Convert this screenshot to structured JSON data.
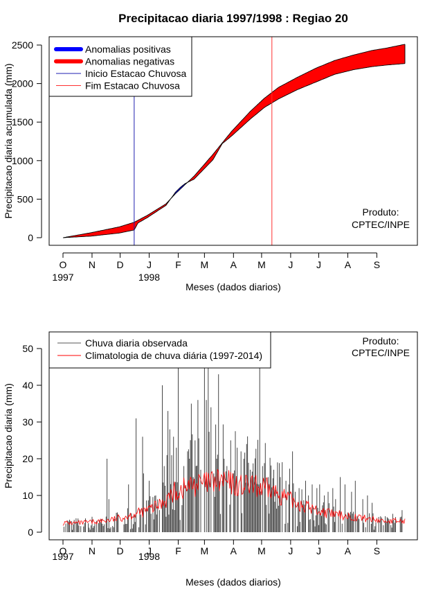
{
  "figure_title": "Precipitacao diaria 1997/1998 : Regiao 20",
  "chart_data": [
    {
      "type": "area",
      "id": "cumulative",
      "title": "Precipitacao diaria 1997/1998 : Regiao 20",
      "xlabel": "Meses (dados diarios)",
      "ylabel": "Precipitacao diaria acumulada (mm)",
      "x_unit": "days since 1997-10-01",
      "xlim": [
        0,
        365
      ],
      "ylim": [
        -80,
        2600
      ],
      "yticks": [
        0,
        500,
        1000,
        1500,
        2000,
        2500
      ],
      "month_ticks": [
        {
          "day": 0,
          "label": "O"
        },
        {
          "day": 31,
          "label": "N"
        },
        {
          "day": 61,
          "label": "D"
        },
        {
          "day": 92,
          "label": "J"
        },
        {
          "day": 123,
          "label": "F"
        },
        {
          "day": 151,
          "label": "M"
        },
        {
          "day": 182,
          "label": "A"
        },
        {
          "day": 212,
          "label": "M"
        },
        {
          "day": 243,
          "label": "J"
        },
        {
          "day": 273,
          "label": "J"
        },
        {
          "day": 304,
          "label": "A"
        },
        {
          "day": 335,
          "label": "S"
        }
      ],
      "year_labels": [
        {
          "day": 0,
          "label": "1997"
        },
        {
          "day": 92,
          "label": "1998"
        }
      ],
      "climatology_cumulative": {
        "x": [
          0,
          30,
          60,
          76,
          90,
          110,
          120,
          140,
          160,
          170,
          180,
          200,
          215,
          230,
          250,
          270,
          290,
          310,
          330,
          345,
          365
        ],
        "y": [
          0,
          65,
          140,
          200,
          290,
          440,
          570,
          800,
          1080,
          1230,
          1380,
          1640,
          1810,
          1950,
          2080,
          2200,
          2300,
          2370,
          2430,
          2460,
          2510
        ]
      },
      "observed_cumulative": {
        "x": [
          0,
          30,
          60,
          76,
          80,
          90,
          110,
          120,
          125,
          130,
          140,
          160,
          170,
          180,
          200,
          215,
          230,
          250,
          270,
          290,
          310,
          330,
          345,
          365
        ],
        "y": [
          0,
          20,
          60,
          100,
          190,
          260,
          420,
          590,
          650,
          700,
          760,
          1010,
          1220,
          1320,
          1540,
          1690,
          1800,
          1920,
          2020,
          2120,
          2180,
          2220,
          2240,
          2260
        ]
      },
      "vlines": [
        {
          "day": 76,
          "label": "Inicio Estacao Chuvosa",
          "color": "#1f1fb0"
        },
        {
          "day": 223,
          "label": "Fim Estacao Chuvosa",
          "color": "#ff3030"
        }
      ],
      "legend": [
        {
          "label": "Anomalias positivas",
          "color": "#0000ff",
          "kind": "thick"
        },
        {
          "label": "Anomalias negativas",
          "color": "#ff0000",
          "kind": "thick"
        },
        {
          "label": "Inicio Estacao Chuvosa",
          "color": "#1f1fb0",
          "kind": "thin"
        },
        {
          "label": "Fim Estacao Chuvosa",
          "color": "#ff3030",
          "kind": "thin"
        }
      ],
      "legend_position": "top-left",
      "product_note": [
        "Produto:",
        "CPTEC/INPE"
      ]
    },
    {
      "type": "bar",
      "id": "daily",
      "xlabel": "Meses (dados diarios)",
      "ylabel": "Precipitacao diaria (mm)",
      "x_unit": "days since 1997-10-01",
      "xlim": [
        0,
        365
      ],
      "ylim": [
        -2,
        53
      ],
      "yticks": [
        0,
        10,
        20,
        30,
        40,
        50
      ],
      "month_ticks": [
        {
          "day": 0,
          "label": "O"
        },
        {
          "day": 31,
          "label": "N"
        },
        {
          "day": 61,
          "label": "D"
        },
        {
          "day": 92,
          "label": "J"
        },
        {
          "day": 123,
          "label": "F"
        },
        {
          "day": 151,
          "label": "M"
        },
        {
          "day": 182,
          "label": "A"
        },
        {
          "day": 212,
          "label": "M"
        },
        {
          "day": 243,
          "label": "J"
        },
        {
          "day": 273,
          "label": "J"
        },
        {
          "day": 304,
          "label": "A"
        },
        {
          "day": 335,
          "label": "S"
        }
      ],
      "year_labels": [
        {
          "day": 0,
          "label": "1997"
        },
        {
          "day": 92,
          "label": "1998"
        }
      ],
      "observed_daily_peaks": {
        "day": [
          47,
          49,
          70,
          78,
          85,
          86,
          92,
          99,
          106,
          108,
          111,
          112,
          114,
          118,
          121,
          123,
          129,
          133,
          135,
          137,
          139,
          141,
          142,
          144,
          147,
          151,
          153,
          155,
          158,
          161,
          164,
          166,
          170,
          172,
          175,
          179,
          182,
          186,
          190,
          193,
          196,
          200,
          204,
          209,
          210,
          213,
          219,
          225,
          229,
          232,
          238,
          241,
          245,
          248,
          252,
          259,
          262,
          266,
          271,
          274,
          279,
          283,
          288,
          291,
          296,
          301,
          308,
          312,
          320,
          325,
          330,
          340,
          352,
          362
        ],
        "value": [
          20,
          9,
          13,
          31,
          26,
          16,
          14,
          10,
          40,
          18,
          21,
          33,
          28,
          26,
          23,
          45,
          18,
          22,
          20,
          35,
          15,
          25,
          18,
          36,
          17,
          45,
          36,
          45,
          34,
          16,
          20,
          43,
          14,
          20,
          18,
          25,
          16,
          23,
          22,
          20,
          24,
          17,
          15,
          13,
          45,
          18,
          15,
          17,
          19,
          15,
          14,
          13,
          22,
          11,
          12,
          14,
          10,
          13,
          12,
          13,
          10,
          11,
          12,
          9,
          15,
          13,
          11,
          14,
          9,
          10,
          8,
          4,
          5,
          6
        ]
      },
      "climatology_daily": {
        "x": [
          0,
          20,
          40,
          55,
          70,
          85,
          100,
          110,
          120,
          130,
          140,
          150,
          160,
          170,
          180,
          190,
          200,
          210,
          220,
          230,
          240,
          255,
          270,
          285,
          300,
          315,
          330,
          345,
          365
        ],
        "y": [
          2.5,
          2.5,
          3,
          3.5,
          4.5,
          5.5,
          7,
          9,
          11,
          12,
          13,
          13,
          13.5,
          14,
          13,
          12.5,
          12.5,
          12,
          11.5,
          10.5,
          9,
          7.5,
          6,
          5,
          4.5,
          4,
          3.5,
          3,
          3
        ]
      },
      "legend": [
        {
          "label": "Chuva diaria observada",
          "color": "#555555"
        },
        {
          "label": "Climatologia de chuva diária (1997-2014)",
          "color": "#ff0000"
        }
      ],
      "legend_position": "top-left",
      "product_note": [
        "Produto:",
        "CPTEC/INPE"
      ]
    }
  ]
}
